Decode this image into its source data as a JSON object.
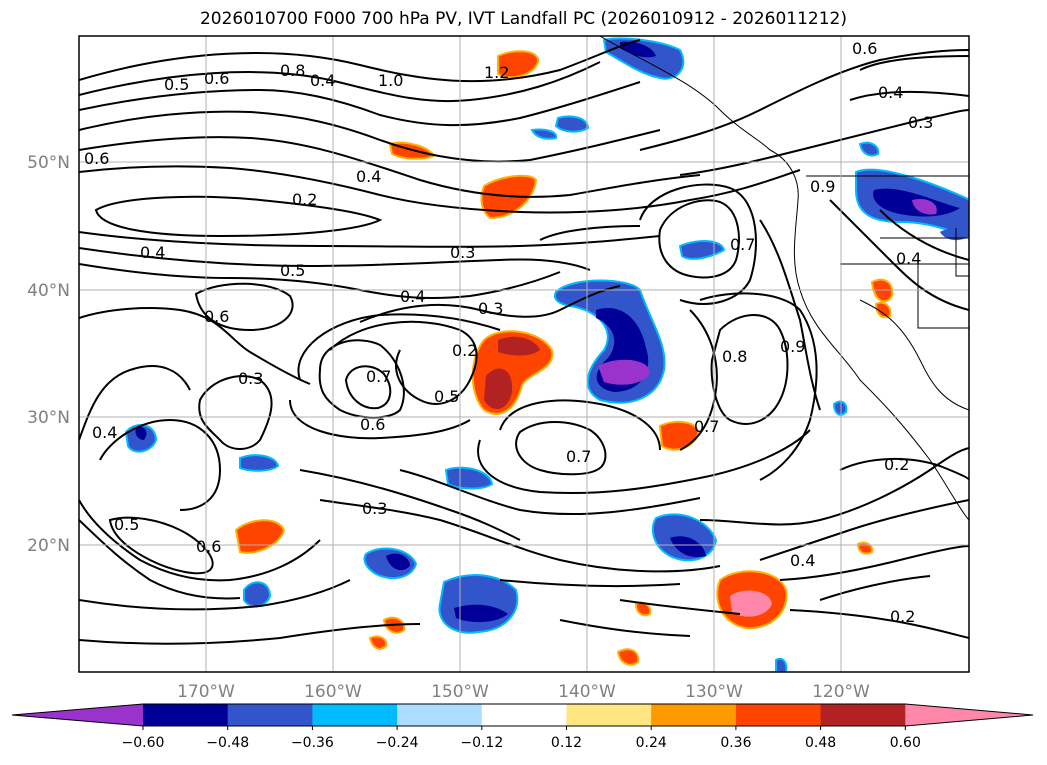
{
  "title": "2026010700 F000 700 hPa PV, IVT Landfall PC (2026010912 - 2026011212)",
  "lat_labels": [
    "50°N",
    "40°N",
    "30°N",
    "20°N"
  ],
  "lon_labels": [
    "170°W",
    "160°W",
    "150°W",
    "140°W",
    "130°W",
    "120°W"
  ],
  "contour_labels": [
    "0.6",
    "0.5",
    "0.8",
    "1.0",
    "1.2",
    "0.6",
    "0.4",
    "0.2",
    "0.4",
    "0.5",
    "0.3",
    "0.4",
    "0.3",
    "0.6",
    "0.3",
    "0.4",
    "0.2",
    "0.7",
    "0.5",
    "0.6",
    "0.7",
    "0.7",
    "0.8",
    "0.9",
    "0.9",
    "0.7",
    "0.4",
    "0.6",
    "0.5",
    "0.3",
    "0.4",
    "0.2",
    "0.2",
    "0.6",
    "0.4",
    "0.3",
    "0.4"
  ],
  "colorbar": {
    "colors": [
      "#9933cc",
      "#000099",
      "#3355cc",
      "#00bbff",
      "#aaddff",
      "#ffffff",
      "#ffe680",
      "#ff9900",
      "#ff4400",
      "#b22222",
      "#ff88aa"
    ],
    "ticks": [
      "−0.60",
      "−0.48",
      "−0.36",
      "−0.24",
      "−0.12",
      "0.12",
      "0.24",
      "0.36",
      "0.48",
      "0.60"
    ]
  },
  "colors": {
    "positive": "#ff4400",
    "negative": "#3355cc",
    "contour": "#000000",
    "grid": "#b0b0b0"
  }
}
